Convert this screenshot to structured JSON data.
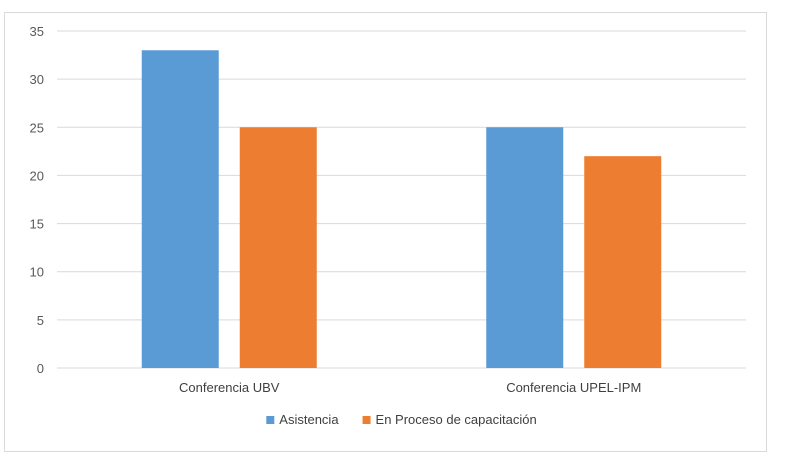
{
  "chart_data": {
    "type": "bar",
    "categories": [
      "Conferencia UBV",
      "Conferencia UPEL-IPM"
    ],
    "series": [
      {
        "name": "Asistencia",
        "values": [
          33,
          25
        ],
        "color": "#5b9bd5"
      },
      {
        "name": "En Proceso de capacitación",
        "values": [
          25,
          22
        ],
        "color": "#ed7d31"
      }
    ],
    "title": "",
    "xlabel": "",
    "ylabel": "",
    "ylim": [
      0,
      35
    ],
    "yticks": [
      0,
      5,
      10,
      15,
      20,
      25,
      30,
      35
    ],
    "grid": true,
    "legend_position": "bottom"
  }
}
